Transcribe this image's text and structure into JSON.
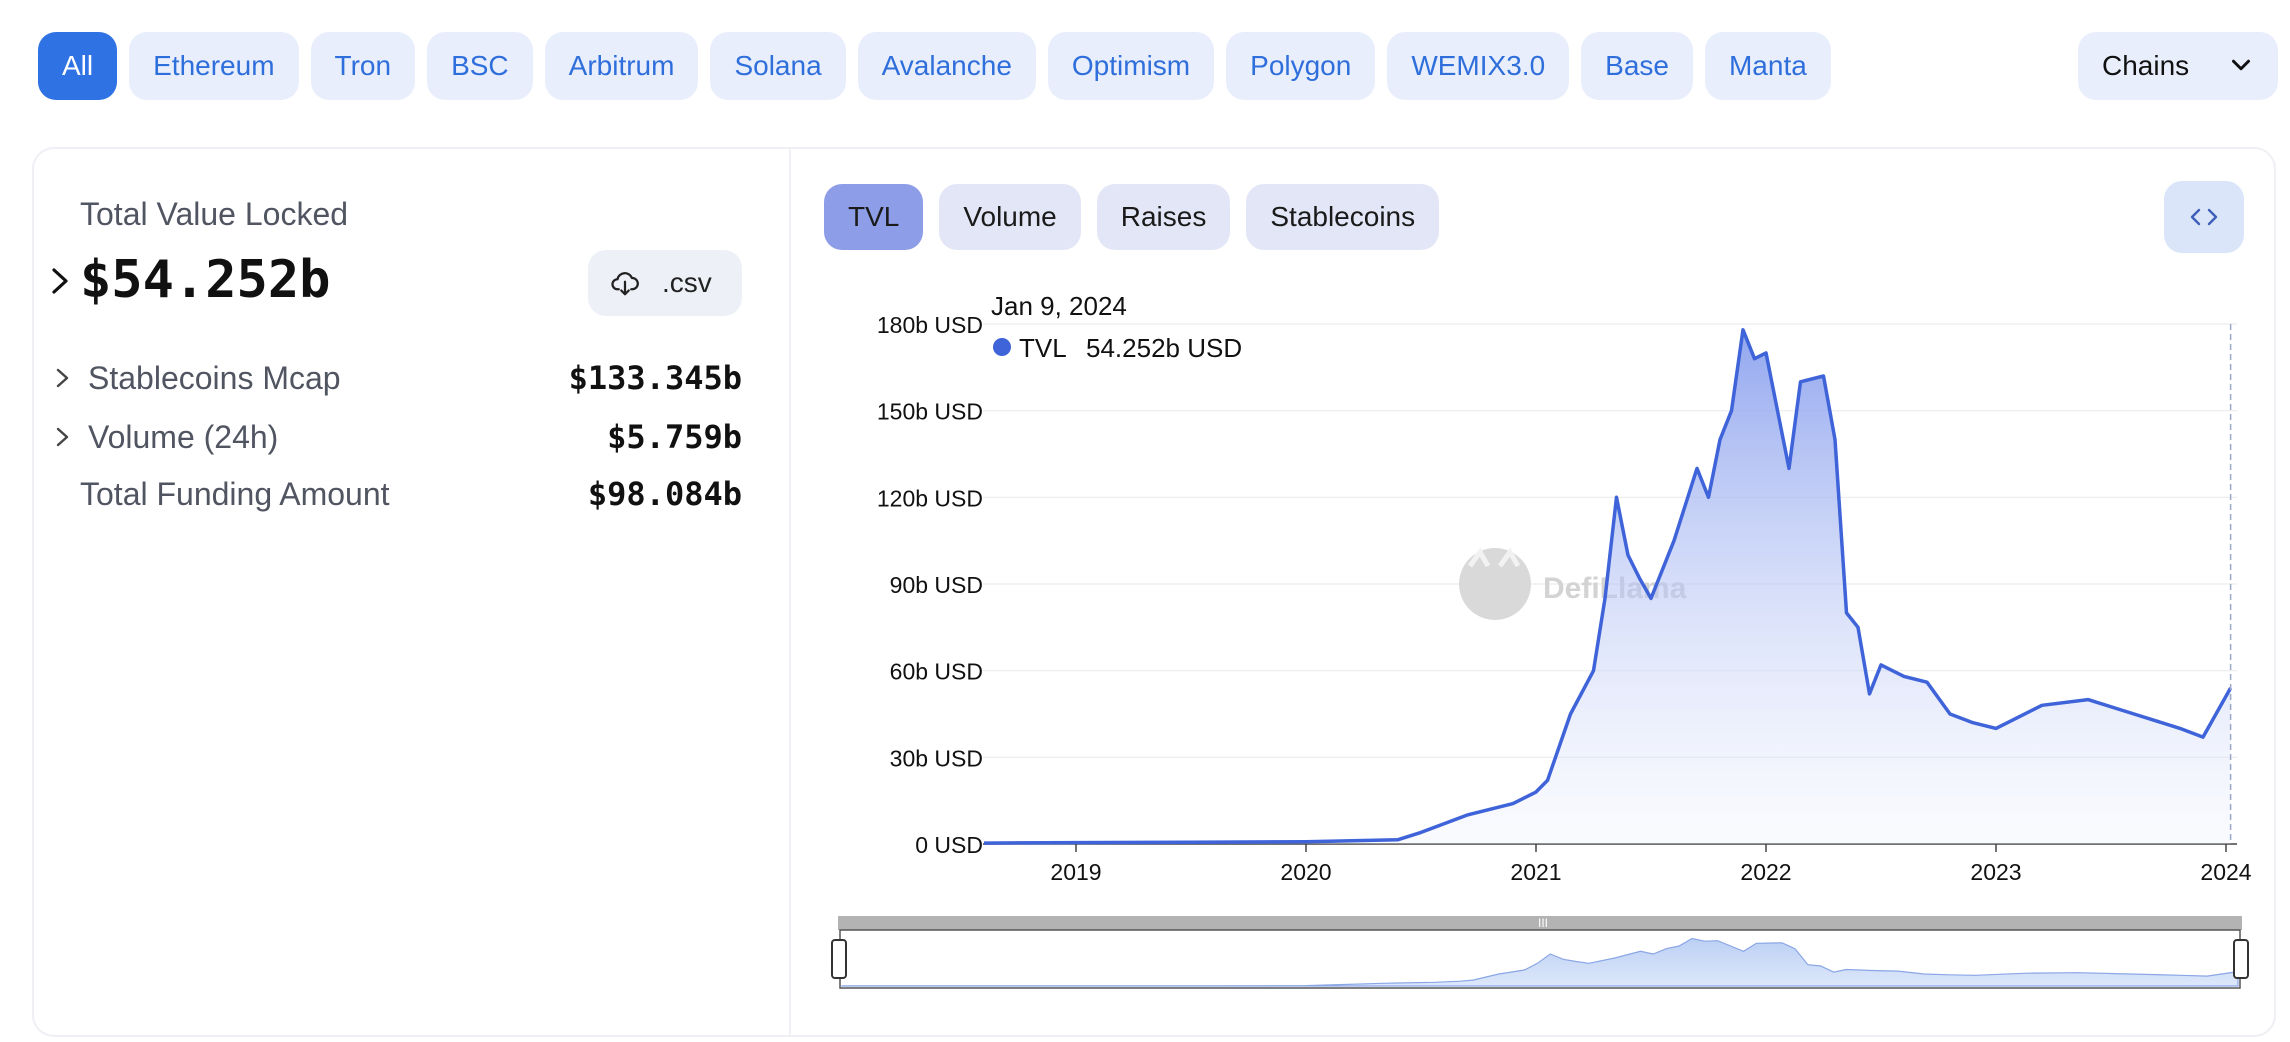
{
  "chain_filters": [
    "All",
    "Ethereum",
    "Tron",
    "BSC",
    "Arbitrum",
    "Solana",
    "Avalanche",
    "Optimism",
    "Polygon",
    "WEMIX3.0",
    "Base",
    "Manta"
  ],
  "chain_filter_active": "All",
  "chains_dropdown": {
    "label": "Chains"
  },
  "summary": {
    "tvl_label": "Total Value Locked",
    "tvl_value": "$54.252b",
    "csv_label": ".csv",
    "stats": [
      {
        "label": "Stablecoins Mcap",
        "value": "$133.345b",
        "expandable": true
      },
      {
        "label": "Volume (24h)",
        "value": "$5.759b",
        "expandable": true
      },
      {
        "label": "Total Funding Amount",
        "value": "$98.084b",
        "expandable": false
      }
    ]
  },
  "chart_tabs": [
    "TVL",
    "Volume",
    "Raises",
    "Stablecoins"
  ],
  "chart_tab_active": "TVL",
  "tooltip": {
    "date": "Jan 9, 2024",
    "series": "TVL",
    "value": "54.252b USD"
  },
  "watermark": "DefiLlama",
  "colors": {
    "accent": "#2f72e4",
    "line": "#3f63d8",
    "pill_bg": "#e8eefc",
    "tab_active": "#8e9de7"
  },
  "chart_data": {
    "type": "area",
    "title": "",
    "xlabel": "",
    "ylabel": "",
    "y_ticks": [
      "0 USD",
      "30b USD",
      "60b USD",
      "90b USD",
      "120b USD",
      "150b USD",
      "180b USD"
    ],
    "x_ticks": [
      "2019",
      "2020",
      "2021",
      "2022",
      "2023",
      "2024"
    ],
    "ylim": [
      0,
      180
    ],
    "y_unit": "b USD",
    "series": [
      {
        "name": "TVL",
        "x": [
          2018.6,
          2019.0,
          2019.5,
          2020.0,
          2020.4,
          2020.5,
          2020.7,
          2020.9,
          2021.0,
          2021.05,
          2021.15,
          2021.25,
          2021.3,
          2021.35,
          2021.4,
          2021.45,
          2021.5,
          2021.6,
          2021.7,
          2021.75,
          2021.8,
          2021.85,
          2021.9,
          2021.95,
          2022.0,
          2022.05,
          2022.1,
          2022.15,
          2022.25,
          2022.3,
          2022.35,
          2022.4,
          2022.45,
          2022.5,
          2022.6,
          2022.7,
          2022.8,
          2022.9,
          2023.0,
          2023.2,
          2023.4,
          2023.6,
          2023.8,
          2023.9,
          2024.02
        ],
        "y": [
          0.3,
          0.5,
          0.6,
          0.8,
          1.5,
          4,
          10,
          14,
          18,
          22,
          45,
          60,
          85,
          120,
          100,
          92,
          85,
          105,
          130,
          120,
          140,
          150,
          178,
          168,
          170,
          150,
          130,
          160,
          162,
          140,
          80,
          75,
          52,
          62,
          58,
          56,
          45,
          42,
          40,
          48,
          50,
          45,
          40,
          37,
          54
        ]
      }
    ]
  }
}
